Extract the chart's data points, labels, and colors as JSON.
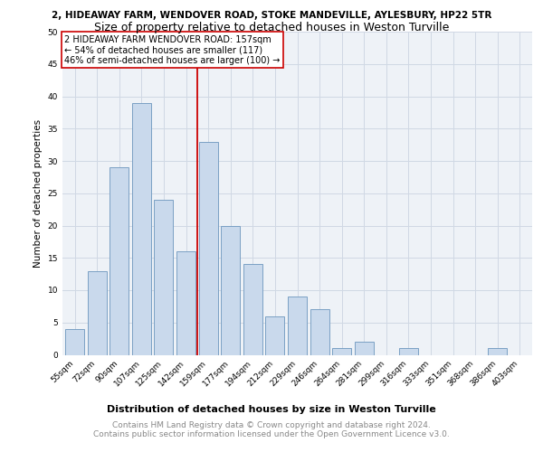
{
  "title1": "2, HIDEAWAY FARM, WENDOVER ROAD, STOKE MANDEVILLE, AYLESBURY, HP22 5TR",
  "title2": "Size of property relative to detached houses in Weston Turville",
  "xlabel": "Distribution of detached houses by size in Weston Turville",
  "ylabel": "Number of detached properties",
  "categories": [
    "55sqm",
    "72sqm",
    "90sqm",
    "107sqm",
    "125sqm",
    "142sqm",
    "159sqm",
    "177sqm",
    "194sqm",
    "212sqm",
    "229sqm",
    "246sqm",
    "264sqm",
    "281sqm",
    "299sqm",
    "316sqm",
    "333sqm",
    "351sqm",
    "368sqm",
    "386sqm",
    "403sqm"
  ],
  "values": [
    4,
    13,
    29,
    39,
    24,
    16,
    33,
    20,
    14,
    6,
    9,
    7,
    1,
    2,
    0,
    1,
    0,
    0,
    0,
    1,
    0
  ],
  "bar_color": "#c9d9ec",
  "bar_edge_color": "#7aa0c4",
  "vline_x_index": 6,
  "vline_color": "#cc0000",
  "annotation_text": "2 HIDEAWAY FARM WENDOVER ROAD: 157sqm\n← 54% of detached houses are smaller (117)\n46% of semi-detached houses are larger (100) →",
  "annotation_box_edge": "#cc0000",
  "ylim": [
    0,
    50
  ],
  "yticks": [
    0,
    5,
    10,
    15,
    20,
    25,
    30,
    35,
    40,
    45,
    50
  ],
  "grid_color": "#d0d8e4",
  "background_color": "#eef2f7",
  "footer_line1": "Contains HM Land Registry data © Crown copyright and database right 2024.",
  "footer_line2": "Contains public sector information licensed under the Open Government Licence v3.0.",
  "title1_fontsize": 7.5,
  "title2_fontsize": 9,
  "xlabel_fontsize": 8,
  "ylabel_fontsize": 7.5,
  "tick_fontsize": 6.5,
  "annotation_fontsize": 7,
  "footer_fontsize": 6.5
}
